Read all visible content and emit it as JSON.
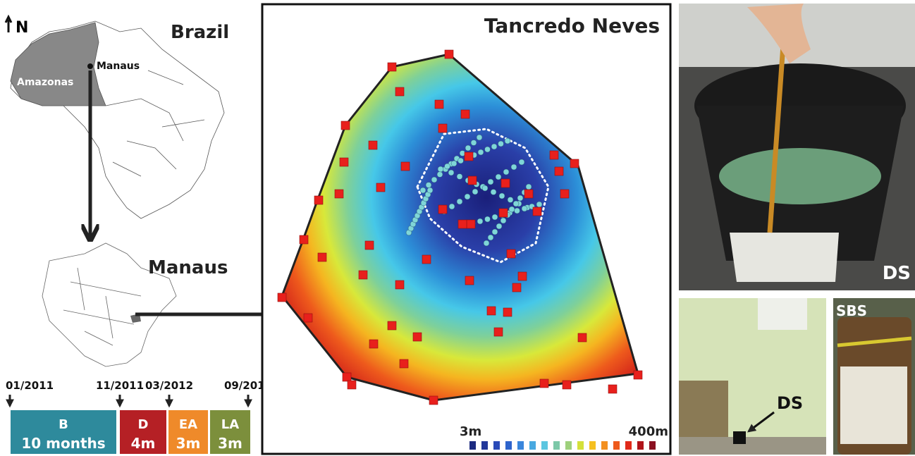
{
  "map": {
    "north": "N",
    "country": "Brazil",
    "state": "Amazonas",
    "city_point": "Manaus",
    "city": "Manaus"
  },
  "timeline": {
    "dates": [
      "01/2011",
      "11/2011",
      "03/2012",
      "09/2012"
    ],
    "phases": [
      {
        "code": "B",
        "duration": "10 months"
      },
      {
        "code": "D",
        "duration": "4m"
      },
      {
        "code": "EA",
        "duration": "3m"
      },
      {
        "code": "LA",
        "duration": "3m"
      }
    ]
  },
  "site": {
    "title": "Tancredo Neves",
    "scale_min": "3m",
    "scale_max": "400m"
  },
  "photos": [
    {
      "label": "DS"
    },
    {
      "label": "DS"
    },
    {
      "label": "SBS"
    }
  ]
}
